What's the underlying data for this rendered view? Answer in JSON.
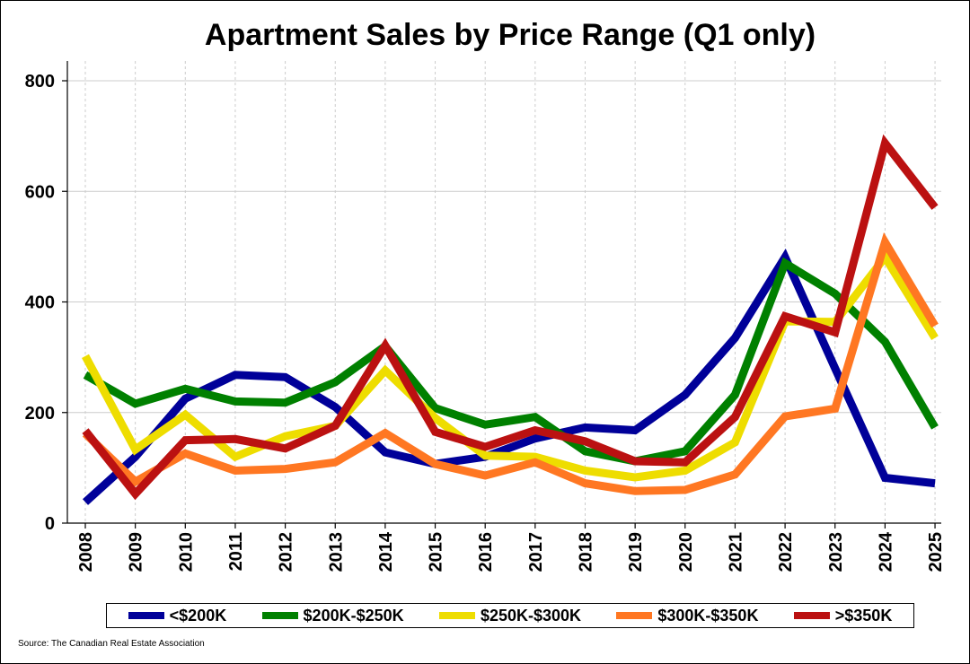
{
  "chart_data": {
    "type": "line",
    "title": "Apartment Sales by Price Range (Q1 only)",
    "xlabel": "",
    "ylabel": "",
    "ylim": [
      0,
      800
    ],
    "yticks": [
      0,
      200,
      400,
      600,
      800
    ],
    "grid": true,
    "legend_position": "bottom",
    "categories": [
      "2008",
      "2009",
      "2010",
      "2011",
      "2012",
      "2013",
      "2014",
      "2015",
      "2016",
      "2017",
      "2018",
      "2019",
      "2020",
      "2021",
      "2022",
      "2023",
      "2024",
      "2025"
    ],
    "series": [
      {
        "name": "<$200K",
        "color": "#000099",
        "values": [
          38,
          120,
          225,
          268,
          264,
          210,
          128,
          107,
          120,
          153,
          173,
          168,
          232,
          335,
          481,
          280,
          82,
          72
        ]
      },
      {
        "name": "$200K-$250K",
        "color": "#008000",
        "values": [
          268,
          216,
          243,
          220,
          218,
          255,
          320,
          208,
          178,
          192,
          130,
          112,
          130,
          232,
          470,
          415,
          328,
          173
        ]
      },
      {
        "name": "$250K-$300K",
        "color": "#EEDD00",
        "values": [
          302,
          133,
          196,
          120,
          157,
          176,
          276,
          190,
          122,
          120,
          95,
          83,
          95,
          146,
          365,
          364,
          481,
          335
        ]
      },
      {
        "name": "$300K-$350K",
        "color": "#FF7722",
        "values": [
          162,
          75,
          126,
          95,
          98,
          110,
          163,
          107,
          86,
          110,
          72,
          58,
          60,
          88,
          193,
          207,
          508,
          357
        ]
      },
      {
        "name": ">$350K",
        "color": "#BB1111",
        "values": [
          167,
          53,
          150,
          152,
          135,
          176,
          321,
          165,
          138,
          168,
          148,
          112,
          110,
          192,
          374,
          345,
          687,
          571
        ]
      }
    ]
  },
  "source_text": "Source: The Canadian Real Estate Association"
}
